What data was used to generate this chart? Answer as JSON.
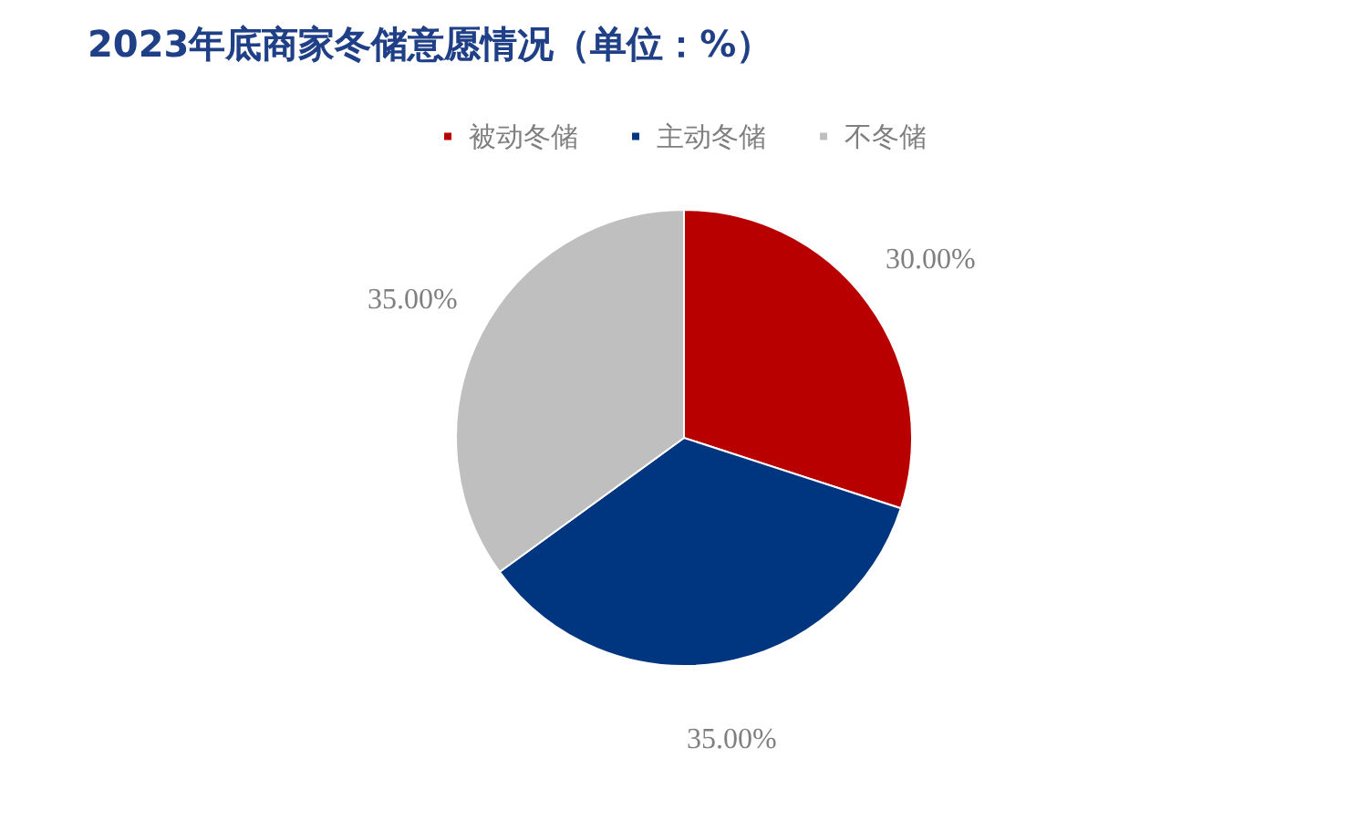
{
  "chart_data": {
    "type": "pie",
    "title": "2023年底商家冬储意愿情况（单位：%）",
    "categories": [
      "被动冬储",
      "主动冬储",
      "不冬储"
    ],
    "values": [
      30,
      35,
      35
    ],
    "colors": [
      "#b80000",
      "#003580",
      "#bfbfbf"
    ],
    "value_labels": [
      "30.00%",
      "35.00%",
      "35.00%"
    ],
    "legend": "top"
  }
}
